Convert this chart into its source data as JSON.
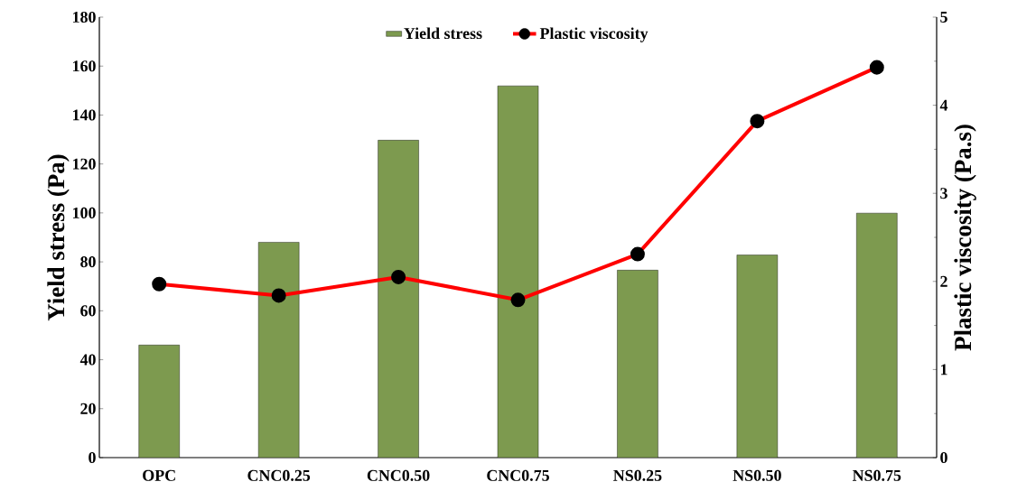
{
  "chart_data": {
    "type": "bar",
    "ylabel": "Yield stress (Pa)",
    "y2label": "Plastic viscosity (Pa.s)",
    "categories": [
      "OPC",
      "CNC0.25",
      "CNC0.50",
      "CNC0.75",
      "NS0.25",
      "NS0.50",
      "NS0.75"
    ],
    "series": [
      {
        "name": "Yield stress",
        "color": "#7d9a4f",
        "values": [
          46,
          88,
          129.7,
          151.9,
          76.6,
          82.8,
          99.9
        ]
      },
      {
        "name": "Plastic viscosity",
        "type": "line",
        "axis": "y2",
        "color": "#ff0000",
        "values": [
          1.97,
          1.84,
          2.05,
          1.79,
          2.31,
          3.82,
          4.43
        ]
      }
    ],
    "ylim": [
      0,
      180
    ],
    "yticks": [
      0,
      20,
      40,
      60,
      80,
      100,
      120,
      140,
      160,
      180
    ],
    "y2lim": [
      0,
      5
    ],
    "y2ticks": [
      0,
      1,
      2,
      3,
      4,
      5
    ],
    "legend": "top",
    "marker": "circle",
    "line_style": "solid"
  }
}
